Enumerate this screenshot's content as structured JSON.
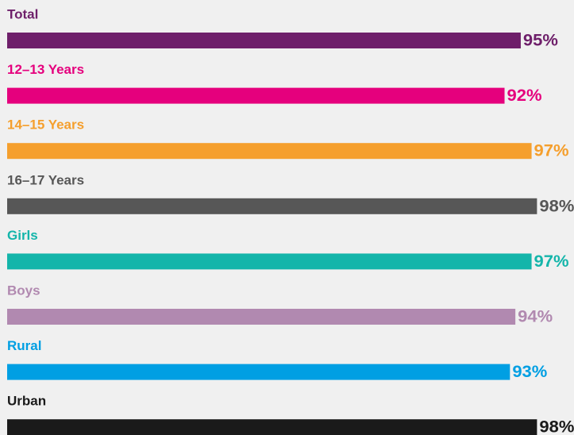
{
  "chart_data": {
    "type": "bar",
    "categories": [
      "Total",
      "12–13 Years",
      "14–15 Years",
      "16–17 Years",
      "Girls",
      "Boys",
      "Rural",
      "Urban"
    ],
    "values": [
      95,
      92,
      97,
      98,
      97,
      94,
      93,
      98
    ],
    "value_labels": [
      "95%",
      "92%",
      "97%",
      "98%",
      "97%",
      "94%",
      "93%",
      "98%"
    ],
    "colors": [
      "#6e1f6a",
      "#e5007d",
      "#f59f2d",
      "#575757",
      "#14b5aa",
      "#b189b0",
      "#009fe3",
      "#1a1a1a"
    ]
  }
}
